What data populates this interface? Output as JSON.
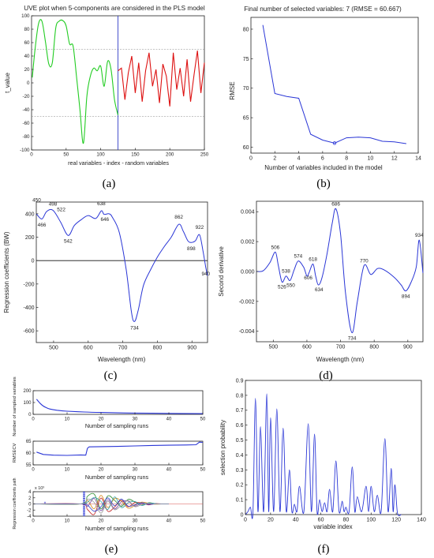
{
  "captions": [
    "(a)",
    "(b)",
    "(c)",
    "(d)",
    "(e)",
    "(f)"
  ],
  "chart_data": [
    {
      "type": "line",
      "panel": "a",
      "title": "UVE plot when 5-components are considered in the PLS model",
      "xlabel": "real variables - index - random variables",
      "ylabel": "t_value",
      "xlim": [
        0,
        250
      ],
      "ylim": [
        -100,
        100
      ],
      "xticks": [
        "0",
        "50",
        "100",
        "150",
        "200",
        "250"
      ],
      "yticks": [
        "-100",
        "-80",
        "-60",
        "-40",
        "-20",
        "0",
        "20",
        "40",
        "60",
        "80",
        "100"
      ],
      "series": [
        {
          "color": "#22cc22",
          "x": [
            1,
            5,
            10,
            15,
            20,
            25,
            30,
            35,
            40,
            45,
            50,
            55,
            60,
            65,
            70,
            75,
            80,
            85,
            90,
            95,
            100,
            105,
            110,
            115,
            120,
            125
          ],
          "y": [
            8,
            50,
            88,
            92,
            62,
            28,
            30,
            82,
            92,
            93,
            85,
            58,
            55,
            10,
            -40,
            -90,
            -20,
            10,
            22,
            18,
            25,
            -5,
            32,
            20,
            -25,
            -48
          ]
        },
        {
          "color": "#dd1111",
          "x": [
            125,
            130,
            135,
            140,
            145,
            150,
            155,
            160,
            165,
            170,
            175,
            180,
            185,
            190,
            195,
            200,
            205,
            210,
            215,
            220,
            225,
            230,
            235,
            240,
            245,
            250
          ],
          "y": [
            18,
            22,
            -25,
            15,
            40,
            -15,
            30,
            -28,
            18,
            45,
            -5,
            20,
            -30,
            28,
            10,
            -35,
            45,
            -10,
            22,
            -20,
            35,
            -28,
            12,
            48,
            -15,
            30
          ]
        }
      ],
      "hlines": [
        50,
        -50
      ],
      "vline": 125
    },
    {
      "type": "line",
      "panel": "b",
      "title": "Final number of selected variables: 7   (RMSE = 60.667)",
      "xlabel": "Number of variables included in the model",
      "ylabel": "RMSE",
      "xlim": [
        0,
        14
      ],
      "ylim": [
        59,
        82
      ],
      "xticks": [
        "0",
        "2",
        "4",
        "6",
        "8",
        "10",
        "12",
        "14"
      ],
      "yticks": [
        "60",
        "65",
        "70",
        "75",
        "80"
      ],
      "x": [
        1,
        2,
        3,
        4,
        5,
        6,
        7,
        8,
        9,
        10,
        11,
        12,
        13
      ],
      "y": [
        80.7,
        69.1,
        68.6,
        68.3,
        62.2,
        61.2,
        60.7,
        61.6,
        61.7,
        61.6,
        61.0,
        60.9,
        60.6
      ],
      "marker_x": 7
    },
    {
      "type": "line",
      "panel": "c",
      "xlabel": "Wavelength (nm)",
      "ylabel": "Regression coefficients (BW)",
      "xlim": [
        450,
        945
      ],
      "ylim": [
        -700,
        500
      ],
      "xticks": [
        "500",
        "600",
        "700",
        "800",
        "900"
      ],
      "yticks": [
        "-600",
        "-400",
        "-200",
        "0",
        "200",
        "400"
      ],
      "x": [
        450,
        466,
        480,
        498,
        520,
        542,
        560,
        580,
        600,
        622,
        638,
        646,
        660,
        670,
        690,
        710,
        725,
        734,
        745,
        760,
        780,
        800,
        820,
        840,
        862,
        875,
        888,
        898,
        910,
        922,
        932,
        940,
        945
      ],
      "y": [
        400,
        355,
        420,
        430,
        330,
        215,
        300,
        350,
        385,
        360,
        425,
        395,
        400,
        370,
        240,
        -80,
        -440,
        -520,
        -420,
        -210,
        -80,
        30,
        120,
        200,
        310,
        250,
        170,
        155,
        170,
        220,
        80,
        -60,
        -130
      ],
      "peak_labels": [
        "450",
        "466",
        "498",
        "542",
        "522",
        "638",
        "646",
        "734",
        "862",
        "898",
        "922",
        "940"
      ]
    },
    {
      "type": "line",
      "panel": "d",
      "xlabel": "Wavelength (nm)",
      "ylabel": "Second derivative",
      "xlim": [
        450,
        945
      ],
      "ylim": [
        -0.0047,
        0.0047
      ],
      "xticks": [
        "500",
        "600",
        "700",
        "800",
        "900"
      ],
      "yticks": [
        "-0.004",
        "-0.002",
        "0.000",
        "0.002",
        "0.004"
      ],
      "x": [
        450,
        470,
        490,
        506,
        515,
        526,
        538,
        550,
        562,
        574,
        590,
        600,
        606,
        618,
        626,
        634,
        645,
        660,
        675,
        686,
        700,
        715,
        734,
        750,
        770,
        790,
        810,
        830,
        860,
        880,
        894,
        910,
        925,
        934,
        945
      ],
      "y": [
        0,
        5e-05,
        0.0006,
        0.0013,
        0.0004,
        -0.0007,
        -0.0003,
        -0.0006,
        0.0001,
        0.0007,
        0.0003,
        -0.0003,
        -0.0001,
        0.0005,
        -0.0003,
        -0.0009,
        -0.0004,
        0.0012,
        0.0032,
        0.0042,
        0.0025,
        -0.0015,
        -0.0041,
        -0.002,
        0.0004,
        -0.0002,
        0.0002,
        0.0001,
        -0.0004,
        -0.0009,
        -0.0013,
        -0.0007,
        0.0003,
        0.0021,
        -0.0001
      ],
      "peak_labels": [
        "506",
        "526",
        "538",
        "550",
        "574",
        "606",
        "618",
        "634",
        "686",
        "734",
        "770",
        "894",
        "934"
      ]
    },
    {
      "type": "line",
      "panel": "e1",
      "xlabel": "Number of sampling runs",
      "ylabel": "Number of sampled variables",
      "xlim": [
        0,
        50
      ],
      "ylim": [
        0,
        200
      ],
      "xticks": [
        "0",
        "10",
        "20",
        "30",
        "40",
        "50"
      ],
      "yticks": [
        "0",
        "100",
        "200"
      ],
      "x": [
        1,
        2,
        3,
        4,
        5,
        7,
        10,
        15,
        20,
        30,
        40,
        50
      ],
      "y": [
        128,
        95,
        70,
        55,
        45,
        35,
        27,
        20,
        16,
        11,
        8,
        6
      ]
    },
    {
      "type": "line",
      "panel": "e2",
      "xlabel": "Number of sampling runs",
      "ylabel": "RMSECV",
      "xlim": [
        0,
        50
      ],
      "ylim": [
        55,
        65
      ],
      "xticks": [
        "0",
        "10",
        "20",
        "30",
        "40",
        "50"
      ],
      "yticks": [
        "55",
        "60",
        "65"
      ],
      "x": [
        1,
        3,
        6,
        10,
        14,
        15.5,
        16,
        16.5,
        20,
        25,
        30,
        35,
        40,
        45,
        48,
        49,
        50
      ],
      "y": [
        60.4,
        59.4,
        59.1,
        59.0,
        59.2,
        59.1,
        62.0,
        62.6,
        62.7,
        62.8,
        63.0,
        63.2,
        63.3,
        63.4,
        63.5,
        64.6,
        64.5
      ]
    },
    {
      "type": "line",
      "panel": "e3",
      "xlabel": "Number of sampling runs",
      "ylabel": "Regression coefficients path",
      "exponent": "x 10³",
      "xlim": [
        0,
        50
      ],
      "ylim": [
        -4,
        4
      ],
      "xticks": [
        "0",
        "10",
        "20",
        "30",
        "40",
        "50"
      ],
      "yticks": [
        "-4",
        "-2",
        "0",
        "2",
        "4"
      ],
      "best_run": 15,
      "series": [
        {
          "color": "#2a8a2a",
          "x": [
            0,
            14,
            16,
            18,
            20,
            22,
            24,
            26,
            28,
            30,
            32,
            34,
            36,
            38,
            40
          ],
          "y": [
            0,
            0,
            2.5,
            3.2,
            -1.6,
            2.6,
            1.2,
            -0.8,
            1.5,
            0.6,
            -0.4,
            0.4,
            0.1,
            0,
            0
          ]
        },
        {
          "color": "#c02222",
          "x": [
            0,
            14,
            16,
            18,
            20,
            22,
            24,
            26,
            28,
            30,
            32,
            34,
            36,
            38,
            40
          ],
          "y": [
            0,
            0,
            -1.8,
            -3.4,
            1.9,
            -2.4,
            -1.0,
            1.2,
            -0.9,
            0.5,
            0.3,
            -0.3,
            0.1,
            0,
            0
          ]
        },
        {
          "color": "#d68a1a",
          "x": [
            0,
            14,
            16,
            18,
            20,
            22,
            24,
            26,
            28,
            30,
            32,
            34,
            36,
            38,
            40
          ],
          "y": [
            0,
            0,
            1.2,
            -1.6,
            2.8,
            -1.2,
            1.8,
            0.9,
            -1.4,
            -0.5,
            0.6,
            0.2,
            -0.1,
            0,
            0
          ]
        },
        {
          "color": "#7a4aa5",
          "x": [
            0,
            14,
            16,
            18,
            20,
            22,
            24,
            26,
            28,
            30,
            32,
            34,
            36,
            38,
            40
          ],
          "y": [
            0,
            0,
            -0.8,
            1.8,
            -2.2,
            1.4,
            -1.6,
            0.7,
            0.9,
            -0.7,
            0.2,
            -0.2,
            0,
            0,
            0
          ]
        },
        {
          "color": "#2f9fa8",
          "x": [
            0,
            14,
            16,
            18,
            20,
            22,
            24,
            26,
            28,
            30,
            32,
            34,
            36,
            38,
            40
          ],
          "y": [
            0,
            0,
            0.6,
            2.1,
            0.8,
            -1.8,
            2.3,
            -1.2,
            0.4,
            0.8,
            -0.5,
            0.3,
            0.1,
            0,
            0
          ]
        },
        {
          "color": "#3344cc",
          "x": [
            0,
            14,
            16,
            18,
            20,
            22,
            24,
            26,
            28,
            30,
            32,
            34,
            36,
            38,
            40
          ],
          "y": [
            0,
            0,
            -0.4,
            -2.4,
            -0.9,
            2.0,
            -0.6,
            1.6,
            -0.7,
            -0.3,
            0.4,
            -0.1,
            0,
            0,
            0
          ]
        },
        {
          "color": "#9a9a9a",
          "x": [
            0,
            14,
            16,
            18,
            20,
            22,
            24,
            26,
            28,
            30,
            32,
            34,
            36,
            38,
            40
          ],
          "y": [
            0,
            0,
            1.6,
            0.5,
            -3.0,
            0.8,
            -1.9,
            -0.4,
            1.1,
            -0.9,
            -0.2,
            0.2,
            0,
            0,
            0
          ]
        }
      ]
    },
    {
      "type": "line",
      "panel": "f",
      "xlabel": "variable index",
      "ylabel": "selection probability",
      "xlim": [
        0,
        140
      ],
      "ylim": [
        0,
        0.9
      ],
      "xticks": [
        "0",
        "20",
        "40",
        "60",
        "80",
        "100",
        "120",
        "140"
      ],
      "yticks": [
        "0",
        "0.1",
        "0.2",
        "0.3",
        "0.4",
        "0.5",
        "0.6",
        "0.7",
        "0.8",
        "0.9"
      ],
      "peaks": [
        [
          4,
          0.05
        ],
        [
          8,
          0.78
        ],
        [
          12,
          0.59
        ],
        [
          17,
          0.81
        ],
        [
          20,
          0.65
        ],
        [
          25,
          0.71
        ],
        [
          30,
          0.58
        ],
        [
          35,
          0.3
        ],
        [
          39,
          0.07
        ],
        [
          43,
          0.19
        ],
        [
          50,
          0.61
        ],
        [
          55,
          0.54
        ],
        [
          59,
          0.1
        ],
        [
          63,
          0.08
        ],
        [
          67,
          0.17
        ],
        [
          72,
          0.36
        ],
        [
          77,
          0.09
        ],
        [
          80,
          0.05
        ],
        [
          85,
          0.32
        ],
        [
          89,
          0.12
        ],
        [
          96,
          0.19
        ],
        [
          100,
          0.19
        ],
        [
          105,
          0.13
        ],
        [
          111,
          0.51
        ],
        [
          116,
          0.31
        ],
        [
          119,
          0.2
        ]
      ]
    }
  ]
}
